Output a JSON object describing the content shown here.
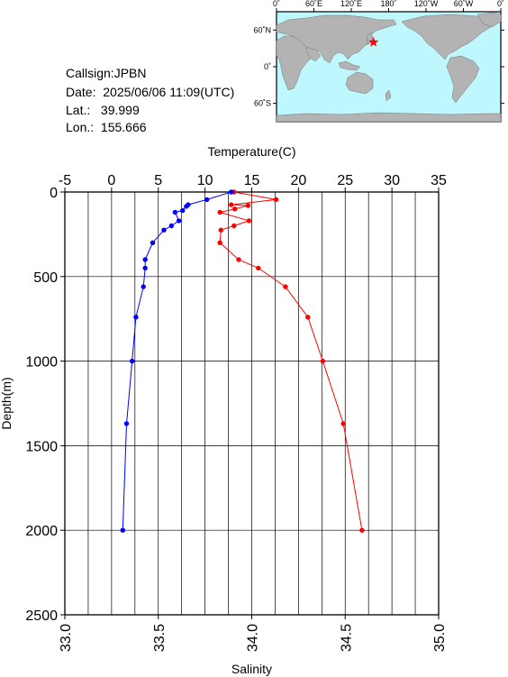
{
  "station": {
    "callsign_label": "Callsign:",
    "callsign": "JPBN",
    "date_label": "Date:",
    "date": "2025/06/06 11:09(UTC)",
    "lat_label": "Lat.:",
    "lat": "39.999",
    "lon_label": "Lon.:",
    "lon": "155.666"
  },
  "map": {
    "lon_ticks": [
      "0˚",
      "60˚E",
      "120˚E",
      "180˚",
      "120˚W",
      "60˚W",
      "0˚"
    ],
    "lat_ticks": [
      "60˚N",
      "0˚",
      "60˚S"
    ],
    "ocean_color": "#bff7ff",
    "land_color": "#b3b3b3",
    "marker_color": "#ff0000",
    "marker_icon": "star-icon"
  },
  "chart_data": {
    "type": "line",
    "top_axis": {
      "label": "Temperature(C)",
      "range": [
        -5,
        35
      ],
      "ticks": [
        -5,
        0,
        5,
        10,
        15,
        20,
        25,
        30,
        35
      ]
    },
    "bottom_axis": {
      "label": "Salinity",
      "range": [
        33.0,
        35.0
      ],
      "ticks": [
        "33.0",
        "33.5",
        "34.0",
        "34.5",
        "35.0"
      ]
    },
    "y_axis": {
      "label": "Depth(m)",
      "range": [
        0,
        2500
      ],
      "inverted": true,
      "ticks": [
        0,
        500,
        1000,
        1500,
        2000,
        2500
      ]
    },
    "grid": true,
    "series": [
      {
        "axis": "temperature",
        "color": "#ff0000",
        "points": [
          {
            "value": 13.1,
            "depth": 0
          },
          {
            "value": 17.6,
            "depth": 45
          },
          {
            "value": 12.8,
            "depth": 75
          },
          {
            "value": 14.6,
            "depth": 80
          },
          {
            "value": 13.2,
            "depth": 100
          },
          {
            "value": 11.6,
            "depth": 120
          },
          {
            "value": 14.7,
            "depth": 170
          },
          {
            "value": 13.1,
            "depth": 200
          },
          {
            "value": 11.7,
            "depth": 225
          },
          {
            "value": 11.6,
            "depth": 300
          },
          {
            "value": 13.6,
            "depth": 400
          },
          {
            "value": 15.7,
            "depth": 450
          },
          {
            "value": 18.6,
            "depth": 560
          },
          {
            "value": 21.0,
            "depth": 740
          },
          {
            "value": 22.6,
            "depth": 1000
          },
          {
            "value": 24.8,
            "depth": 1370
          },
          {
            "value": 26.8,
            "depth": 2000
          }
        ]
      },
      {
        "axis": "salinity",
        "color": "#0000ff",
        "points": [
          {
            "value": 33.89,
            "depth": 0
          },
          {
            "value": 33.76,
            "depth": 45
          },
          {
            "value": 33.66,
            "depth": 75
          },
          {
            "value": 33.65,
            "depth": 85
          },
          {
            "value": 33.63,
            "depth": 110
          },
          {
            "value": 33.59,
            "depth": 120
          },
          {
            "value": 33.61,
            "depth": 170
          },
          {
            "value": 33.57,
            "depth": 200
          },
          {
            "value": 33.53,
            "depth": 225
          },
          {
            "value": 33.47,
            "depth": 300
          },
          {
            "value": 33.43,
            "depth": 400
          },
          {
            "value": 33.43,
            "depth": 450
          },
          {
            "value": 33.42,
            "depth": 560
          },
          {
            "value": 33.38,
            "depth": 740
          },
          {
            "value": 33.36,
            "depth": 1000
          },
          {
            "value": 33.33,
            "depth": 1370
          },
          {
            "value": 33.31,
            "depth": 2000
          }
        ]
      }
    ]
  }
}
